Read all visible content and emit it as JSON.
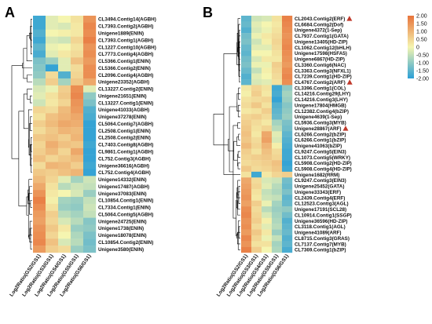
{
  "chart_data": [
    {
      "type": "heatmap",
      "panel_label": "A",
      "columns": [
        "Log2Ratio(GS2/GS1)",
        "Log2Ratio(GS3/GS1)",
        "Log2Ratio(GS4/GS1)",
        "Log2Ratio(GS5/GS1)",
        "Log2Ratio(GS6/GS1)"
      ],
      "rows": [
        {
          "label": "CL3494.Contig14(AGBH)",
          "values": [
            -1.8,
            -0.2,
            0.0,
            0.3,
            1.5
          ]
        },
        {
          "label": "CL7393.Contig2(AGBH)",
          "values": [
            -1.8,
            -0.2,
            -0.3,
            0.2,
            1.7
          ]
        },
        {
          "label": "Unigene1889(ENIN)",
          "values": [
            -1.6,
            0.0,
            0.1,
            0.2,
            1.6
          ]
        },
        {
          "label": "CL7393.Contig1(AGBH)",
          "values": [
            -1.8,
            -0.3,
            -0.4,
            0.5,
            1.8
          ]
        },
        {
          "label": "CL1227.Contig10(AGBH)",
          "values": [
            -1.5,
            -0.1,
            0.0,
            0.3,
            1.5
          ]
        },
        {
          "label": "CL7773.Contig4(AGBH)",
          "values": [
            -1.7,
            -0.2,
            0.2,
            0.4,
            1.6
          ]
        },
        {
          "label": "CL5366.Contig1(ENIN)",
          "values": [
            -1.2,
            -0.9,
            -0.2,
            0.8,
            1.4
          ]
        },
        {
          "label": "CL5366.Contig2(ENIN)",
          "values": [
            -1.1,
            -1.9,
            -0.2,
            0.4,
            1.6
          ]
        },
        {
          "label": "CL2096.Contig4(AGBH)",
          "values": [
            -1.0,
            0.4,
            -1.6,
            0.5,
            1.6
          ]
        },
        {
          "label": "Unigene23352(AGBH)",
          "values": [
            -0.6,
            0.6,
            -0.8,
            0.7,
            1.2
          ]
        },
        {
          "label": "CL13227.Contig2(ENIN)",
          "values": [
            -0.3,
            -0.1,
            0.6,
            1.6,
            -0.2
          ]
        },
        {
          "label": "Unigene21651(ENIN)",
          "values": [
            -0.2,
            0.3,
            0.7,
            1.7,
            -1.0
          ]
        },
        {
          "label": "CL13227.Contig1(ENIN)",
          "values": [
            -0.4,
            0.2,
            0.5,
            1.5,
            -1.2
          ]
        },
        {
          "label": "Unigene41033(AGBH)",
          "values": [
            0.5,
            0.4,
            0.9,
            1.4,
            -1.6
          ]
        },
        {
          "label": "Unigene37278(ENIN)",
          "values": [
            0.3,
            0.8,
            1.0,
            1.2,
            -1.7
          ]
        },
        {
          "label": "CL5064.Contig7(AGBH)",
          "values": [
            0.6,
            0.9,
            1.2,
            1.1,
            -1.9
          ]
        },
        {
          "label": "CL2508.Contig1(ENIN)",
          "values": [
            0.4,
            0.7,
            1.0,
            0.9,
            -1.9
          ]
        },
        {
          "label": "CL2508.Contig2(ENIN)",
          "values": [
            0.7,
            0.8,
            0.6,
            1.0,
            -1.9
          ]
        },
        {
          "label": "CL7403.Contig8(AGBH)",
          "values": [
            0.5,
            1.1,
            0.8,
            0.7,
            -1.8
          ]
        },
        {
          "label": "CL9861.Contig1(AGBH)",
          "values": [
            0.6,
            0.9,
            0.5,
            1.2,
            -1.9
          ]
        },
        {
          "label": "CL752.Contig3(AGBH)",
          "values": [
            0.8,
            0.5,
            0.7,
            0.9,
            -1.9
          ]
        },
        {
          "label": "Unigene36616(AGBH)",
          "values": [
            0.4,
            1.0,
            0.9,
            0.6,
            -1.8
          ]
        },
        {
          "label": "CL752.Contig4(AGBH)",
          "values": [
            0.7,
            0.6,
            0.8,
            1.0,
            -1.9
          ]
        },
        {
          "label": "Unigene14332(ENIN)",
          "values": [
            0.9,
            0.5,
            -0.2,
            -0.8,
            -0.4
          ]
        },
        {
          "label": "Unigene17487(AGBH)",
          "values": [
            1.2,
            0.3,
            -0.6,
            -0.4,
            -0.5
          ]
        },
        {
          "label": "Unigene37083(ENIN)",
          "values": [
            1.5,
            0.2,
            0.0,
            -0.3,
            -0.9
          ]
        },
        {
          "label": "CL10854.Contig1(ENIN)",
          "values": [
            1.8,
            0.1,
            -0.8,
            -0.9,
            -0.5
          ]
        },
        {
          "label": "CL7334.Contig1(ENIN)",
          "values": [
            1.6,
            0.3,
            -0.9,
            -1.0,
            -0.4
          ]
        },
        {
          "label": "CL5064.Contig5(AGBH)",
          "values": [
            1.4,
            0.6,
            -0.6,
            -0.8,
            -0.5
          ]
        },
        {
          "label": "Unigene24725(ENIN)",
          "values": [
            1.3,
            0.5,
            -0.3,
            -0.6,
            -1.1
          ]
        },
        {
          "label": "Unigene1738(ENIN)",
          "values": [
            1.5,
            0.7,
            0.2,
            -0.9,
            -1.0
          ]
        },
        {
          "label": "Unigene18078(ENIN)",
          "values": [
            1.6,
            0.5,
            0.0,
            -0.7,
            -1.2
          ]
        },
        {
          "label": "CL10854.Contig2(ENIN)",
          "values": [
            1.7,
            0.8,
            -0.3,
            -0.6,
            -1.3
          ]
        },
        {
          "label": "Unigene3580(ENIN)",
          "values": [
            1.4,
            0.6,
            0.4,
            -0.9,
            -1.2
          ]
        }
      ]
    },
    {
      "type": "heatmap",
      "panel_label": "B",
      "columns": [
        "Log2Ratio(GS2/GS1)",
        "Log2Ratio(GS3/GS1)",
        "Log2Ratio(GS4/GS1)",
        "Log2Ratio(GS5/GS1)",
        "Log2Ratio(GS6/GS1)"
      ],
      "rows": [
        {
          "label": "CL2043.Contig2(ERF)",
          "flag": true,
          "values": [
            -1.5,
            -0.4,
            -0.3,
            0.3,
            1.8
          ]
        },
        {
          "label": "CL6684.Contig2(Dof)",
          "values": [
            -1.4,
            -0.2,
            0.0,
            0.2,
            1.7
          ]
        },
        {
          "label": "Unigene4372(1-Sep)",
          "values": [
            -1.6,
            -0.3,
            -0.1,
            0.3,
            1.6
          ]
        },
        {
          "label": "CL7937.Contig1(GATA)",
          "values": [
            -1.3,
            -0.1,
            0.2,
            0.4,
            1.5
          ]
        },
        {
          "label": "Unigene13405(HD-ZIP)",
          "values": [
            -1.2,
            -0.4,
            0.1,
            0.5,
            1.6
          ]
        },
        {
          "label": "CL1062.Contig12(bHLH)",
          "values": [
            -1.4,
            -0.2,
            -0.2,
            0.4,
            1.7
          ]
        },
        {
          "label": "Unigene17598(HSFA5)",
          "values": [
            -1.5,
            0.0,
            0.0,
            0.3,
            1.6
          ]
        },
        {
          "label": "Unigene6867(HD-ZIP)",
          "values": [
            -1.3,
            -0.3,
            0.2,
            0.2,
            1.5
          ]
        },
        {
          "label": "CL3360.Contig6(NAC)",
          "values": [
            -1.2,
            -0.1,
            -0.1,
            0.6,
            1.4
          ]
        },
        {
          "label": "CL3363.Contig3(NFXL1)",
          "values": [
            -1.4,
            -0.5,
            0.1,
            0.5,
            1.6
          ]
        },
        {
          "label": "CL7239.Contig1(HD-ZIP)",
          "values": [
            -1.6,
            -0.2,
            0.0,
            0.4,
            1.7
          ]
        },
        {
          "label": "CL4767.Contig2(ARF)",
          "flag": true,
          "values": [
            -1.5,
            -0.3,
            -0.2,
            0.3,
            1.6
          ]
        },
        {
          "label": "CL3396.Contig1(COL)",
          "values": [
            0.2,
            0.5,
            0.3,
            -1.8,
            -1.0
          ]
        },
        {
          "label": "CL14216.Contig29(LHY)",
          "values": [
            0.1,
            0.6,
            0.2,
            -1.7,
            -0.8
          ]
        },
        {
          "label": "CL14216.Contig3(LHY)",
          "values": [
            0.3,
            0.4,
            0.5,
            -1.9,
            -0.9
          ]
        },
        {
          "label": "Unigene17804(HMGB)",
          "values": [
            0.4,
            0.7,
            0.3,
            -1.6,
            -1.1
          ]
        },
        {
          "label": "CL12382.Contig4(bZIP)",
          "values": [
            0.2,
            0.3,
            0.6,
            -1.5,
            -1.0
          ]
        },
        {
          "label": "Unigene4639(1-Sep)",
          "values": [
            0.5,
            0.6,
            0.4,
            -1.4,
            -0.9
          ]
        },
        {
          "label": "CL5936.Contig3(MYB)",
          "values": [
            0.6,
            0.4,
            0.2,
            -0.8,
            -1.2
          ]
        },
        {
          "label": "Unigene28867(ARF)",
          "flag": true,
          "values": [
            0.7,
            0.3,
            0.5,
            -0.6,
            -1.3
          ]
        },
        {
          "label": "CL6266.Contig2(bZIP)",
          "values": [
            0.8,
            0.2,
            1.2,
            -0.2,
            -1.5
          ]
        },
        {
          "label": "CL6266.Contig1(bZIP)",
          "values": [
            0.7,
            0.4,
            1.3,
            -0.3,
            -1.6
          ]
        },
        {
          "label": "Unigene41063(bZIP)",
          "values": [
            0.9,
            0.5,
            1.0,
            0.1,
            -1.7
          ]
        },
        {
          "label": "CL9247.Contig5(EIN3)",
          "values": [
            0.6,
            0.3,
            0.8,
            0.4,
            -1.8
          ]
        },
        {
          "label": "CL1073.Contig5(WRKY)",
          "values": [
            0.5,
            0.6,
            0.7,
            0.5,
            -1.8
          ]
        },
        {
          "label": "CL5908.Contig2(HD-ZIP)",
          "values": [
            0.4,
            0.5,
            0.6,
            0.8,
            -1.9
          ]
        },
        {
          "label": "CL5908.Contig4(HD-ZIP)",
          "values": [
            0.7,
            0.4,
            0.5,
            0.7,
            -1.8
          ]
        },
        {
          "label": "Unigene1682(RRM)",
          "values": [
            0.3,
            -1.8,
            0.2,
            0.5,
            0.6
          ]
        },
        {
          "label": "CL9247.Contig3(EIN3)",
          "values": [
            1.2,
            0.4,
            -0.3,
            -0.4,
            -1.3
          ]
        },
        {
          "label": "Unigene25452(GATA)",
          "values": [
            1.3,
            0.5,
            -0.2,
            -0.6,
            -1.4
          ]
        },
        {
          "label": "Unigene33343(ERF)",
          "values": [
            1.4,
            0.3,
            -0.5,
            -0.7,
            -1.2
          ]
        },
        {
          "label": "CL2439.Contig4(ERF)",
          "values": [
            1.5,
            0.2,
            -0.4,
            -0.5,
            -1.5
          ]
        },
        {
          "label": "CL12523.Contig3(AGL)",
          "values": [
            1.3,
            0.6,
            -0.1,
            -0.8,
            -1.4
          ]
        },
        {
          "label": "Unigene17191(SCL28)",
          "values": [
            1.6,
            0.4,
            -0.6,
            -0.9,
            -1.0
          ]
        },
        {
          "label": "CL10914.Contig1(SSGP)",
          "values": [
            1.7,
            0.5,
            -0.3,
            -0.8,
            -1.3
          ]
        },
        {
          "label": "Unigene36596(HD-ZIP)",
          "values": [
            1.5,
            0.6,
            0.1,
            -0.7,
            -1.6
          ]
        },
        {
          "label": "CL3118.Contig1(AGL)",
          "values": [
            1.6,
            0.4,
            -0.2,
            -0.6,
            -1.5
          ]
        },
        {
          "label": "Unigene41089(ARF)",
          "values": [
            1.4,
            0.7,
            0.2,
            -0.9,
            -1.4
          ]
        },
        {
          "label": "CL8715.Contig3(GRAS)",
          "values": [
            1.7,
            0.5,
            -0.1,
            -0.5,
            -1.6
          ]
        },
        {
          "label": "CL7137.Contig7(MYB)",
          "values": [
            1.5,
            0.3,
            0.3,
            -0.8,
            -1.5
          ]
        },
        {
          "label": "CL7369.Contig1(bZIP)",
          "values": [
            1.8,
            0.6,
            0.0,
            -0.7,
            -1.7
          ]
        }
      ]
    }
  ],
  "legend": {
    "ticks": [
      "2.00",
      "1.50",
      "1.00",
      "0.50",
      "0",
      "-0.50",
      "-1.00",
      "-1.50",
      "-2.00"
    ],
    "tick_values": [
      2,
      1.5,
      1,
      0.5,
      0,
      -0.5,
      -1,
      -1.5,
      -2
    ],
    "range": [
      -2,
      2
    ],
    "high_color": "#e8743b",
    "mid_color": "#f5f5b0",
    "low_color": "#2b9fd6"
  },
  "flag_color": "#c0392b"
}
